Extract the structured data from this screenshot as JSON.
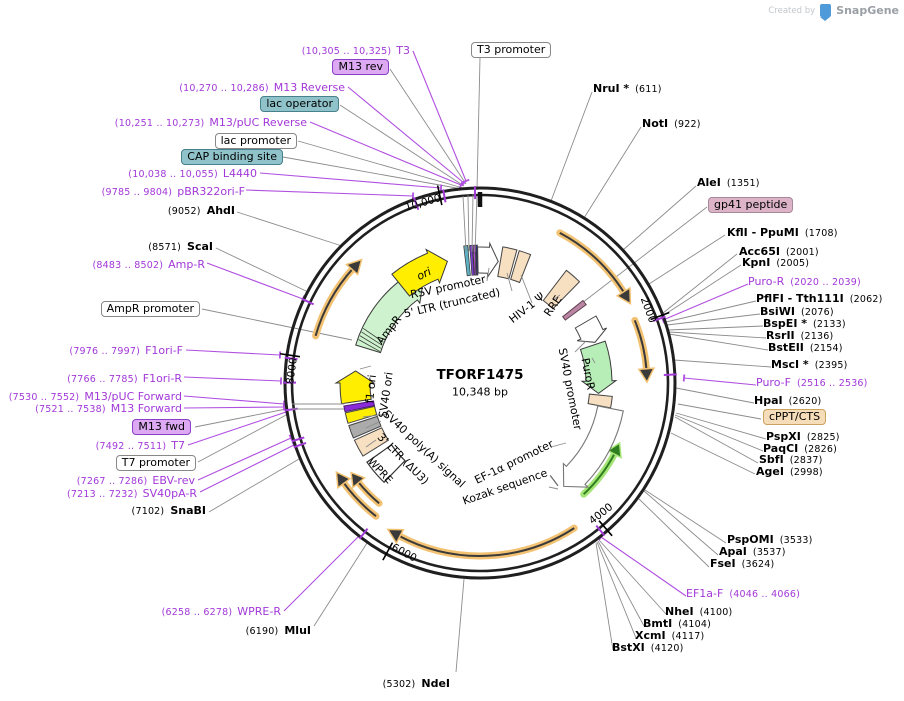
{
  "watermark": {
    "prefix": "Created by",
    "brand": "SnapGene"
  },
  "plasmid": {
    "name": "TFORF1475",
    "size": "10,348 bp"
  },
  "map": {
    "ticks": [
      "10,000",
      "2000",
      "4000",
      "6000",
      "8000"
    ],
    "features": {
      "ori": "ori",
      "rsv_promoter": "RSV promoter",
      "ltr5": "5' LTR (truncated)",
      "hiv1_psi": "HIV-1 Ψ",
      "rre": "RRE",
      "ampr": "AmpR",
      "f1_ori": "f1 ori",
      "sv40_ori": "SV40 ori",
      "sv40_polya": "SV40 poly(A) signal",
      "ltr3": "3' LTR (ΔU3)",
      "wpre": "WPRE",
      "puror": "PuroR",
      "sv40_promoter": "SV40 promoter",
      "ef1a_promoter": "EF-1α promoter",
      "kozak": "Kozak sequence"
    }
  },
  "top": {
    "t3_promoter": "T3 promoter"
  },
  "left": [
    {
      "pos": "(10,305 .. 10,325)",
      "name": "T3"
    },
    {
      "text": "M13 rev"
    },
    {
      "pos": "(10,270 .. 10,286)",
      "name": "M13 Reverse"
    },
    {
      "text": "lac operator"
    },
    {
      "pos": "(10,251 .. 10,273)",
      "name": "M13/pUC Reverse"
    },
    {
      "text": "lac promoter"
    },
    {
      "text": "CAP binding site"
    },
    {
      "pos": "(10,038 .. 10,055)",
      "name": "L4440"
    },
    {
      "pos": "(9785 .. 9804)",
      "name": "pBR322ori-F"
    },
    {
      "pos": "(9052)",
      "name": "AhdI"
    },
    {
      "pos": "(8571)",
      "name": "ScaI"
    },
    {
      "pos": "(8483 .. 8502)",
      "name": "Amp-R"
    },
    {
      "text": "AmpR promoter"
    },
    {
      "pos": "(7976 .. 7997)",
      "name": "F1ori-F"
    },
    {
      "pos": "(7766 .. 7785)",
      "name": "F1ori-R"
    },
    {
      "pos": "(7530 .. 7552)",
      "name": "M13/pUC Forward"
    },
    {
      "pos": "(7521 .. 7538)",
      "name": "M13 Forward"
    },
    {
      "text": "M13 fwd"
    },
    {
      "pos": "(7492 .. 7511)",
      "name": "T7"
    },
    {
      "text": "T7 promoter"
    },
    {
      "pos": "(7267 .. 7286)",
      "name": "EBV-rev"
    },
    {
      "pos": "(7213 .. 7232)",
      "name": "SV40pA-R"
    },
    {
      "pos": "(7102)",
      "name": "SnaBI"
    },
    {
      "pos": "(6258 .. 6278)",
      "name": "WPRE-R"
    },
    {
      "pos": "(6190)",
      "name": "MluI"
    },
    {
      "pos": "(5302)",
      "name": "NdeI"
    }
  ],
  "right": [
    {
      "name": "NruI *",
      "pos": "(611)"
    },
    {
      "name": "NotI",
      "pos": "(922)"
    },
    {
      "name": "AleI",
      "pos": "(1351)"
    },
    {
      "text": "gp41 peptide"
    },
    {
      "name": "KflI - PpuMI",
      "pos": "(1708)"
    },
    {
      "name": "Acc65I",
      "pos": "(2001)"
    },
    {
      "name": "KpnI",
      "pos": "(2005)"
    },
    {
      "name": "Puro-R",
      "pos": "(2020 .. 2039)"
    },
    {
      "name": "PflFI - Tth111I",
      "pos": "(2062)"
    },
    {
      "name": "BsiWI",
      "pos": "(2076)"
    },
    {
      "name": "BspEI *",
      "pos": "(2133)"
    },
    {
      "name": "RsrII",
      "pos": "(2136)"
    },
    {
      "name": "BstEII",
      "pos": "(2154)"
    },
    {
      "name": "MscI *",
      "pos": "(2395)"
    },
    {
      "name": "Puro-F",
      "pos": "(2516 .. 2536)"
    },
    {
      "name": "HpaI",
      "pos": "(2620)"
    },
    {
      "text": "cPPT/CTS"
    },
    {
      "name": "PspXI",
      "pos": "(2825)"
    },
    {
      "name": "PaqCI",
      "pos": "(2826)"
    },
    {
      "name": "SbfI",
      "pos": "(2837)"
    },
    {
      "name": "AgeI",
      "pos": "(2998)"
    },
    {
      "name": "PspOMI",
      "pos": "(3533)"
    },
    {
      "name": "ApaI",
      "pos": "(3537)"
    },
    {
      "name": "FseI",
      "pos": "(3624)"
    },
    {
      "name": "EF1a-F",
      "pos": "(4046 .. 4066)"
    },
    {
      "name": "NheI",
      "pos": "(4100)"
    },
    {
      "name": "BmtI",
      "pos": "(4104)"
    },
    {
      "name": "XcmI",
      "pos": "(4117)"
    },
    {
      "name": "BstXI",
      "pos": "(4120)"
    }
  ]
}
